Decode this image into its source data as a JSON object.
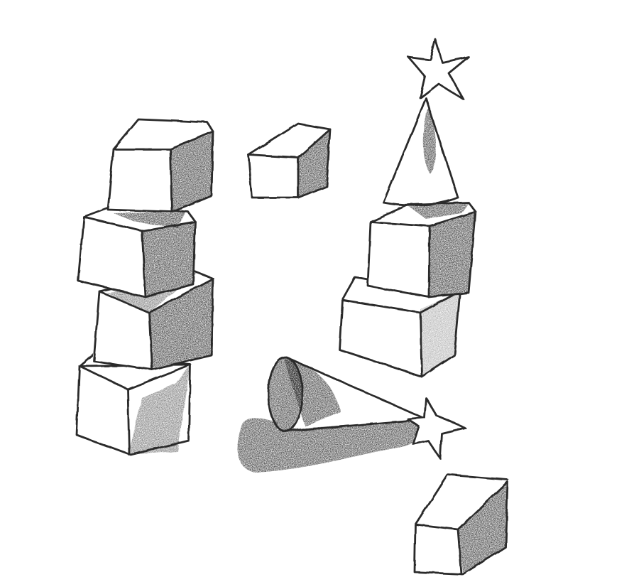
{
  "scene": {
    "background_color": "#ffffff",
    "ink_color": "#2a2a2a",
    "shade_color": "#1c1c1c",
    "objects": [
      {
        "name": "left-tower",
        "kind": "stack of four cubes"
      },
      {
        "name": "floating-cube",
        "kind": "cube"
      },
      {
        "name": "right-tower",
        "kind": "two cubes topped by a cone with a star"
      },
      {
        "name": "fallen-cone",
        "kind": "cone with star lying on its side casting a shadow"
      },
      {
        "name": "bottom-cube",
        "kind": "cube"
      }
    ]
  }
}
